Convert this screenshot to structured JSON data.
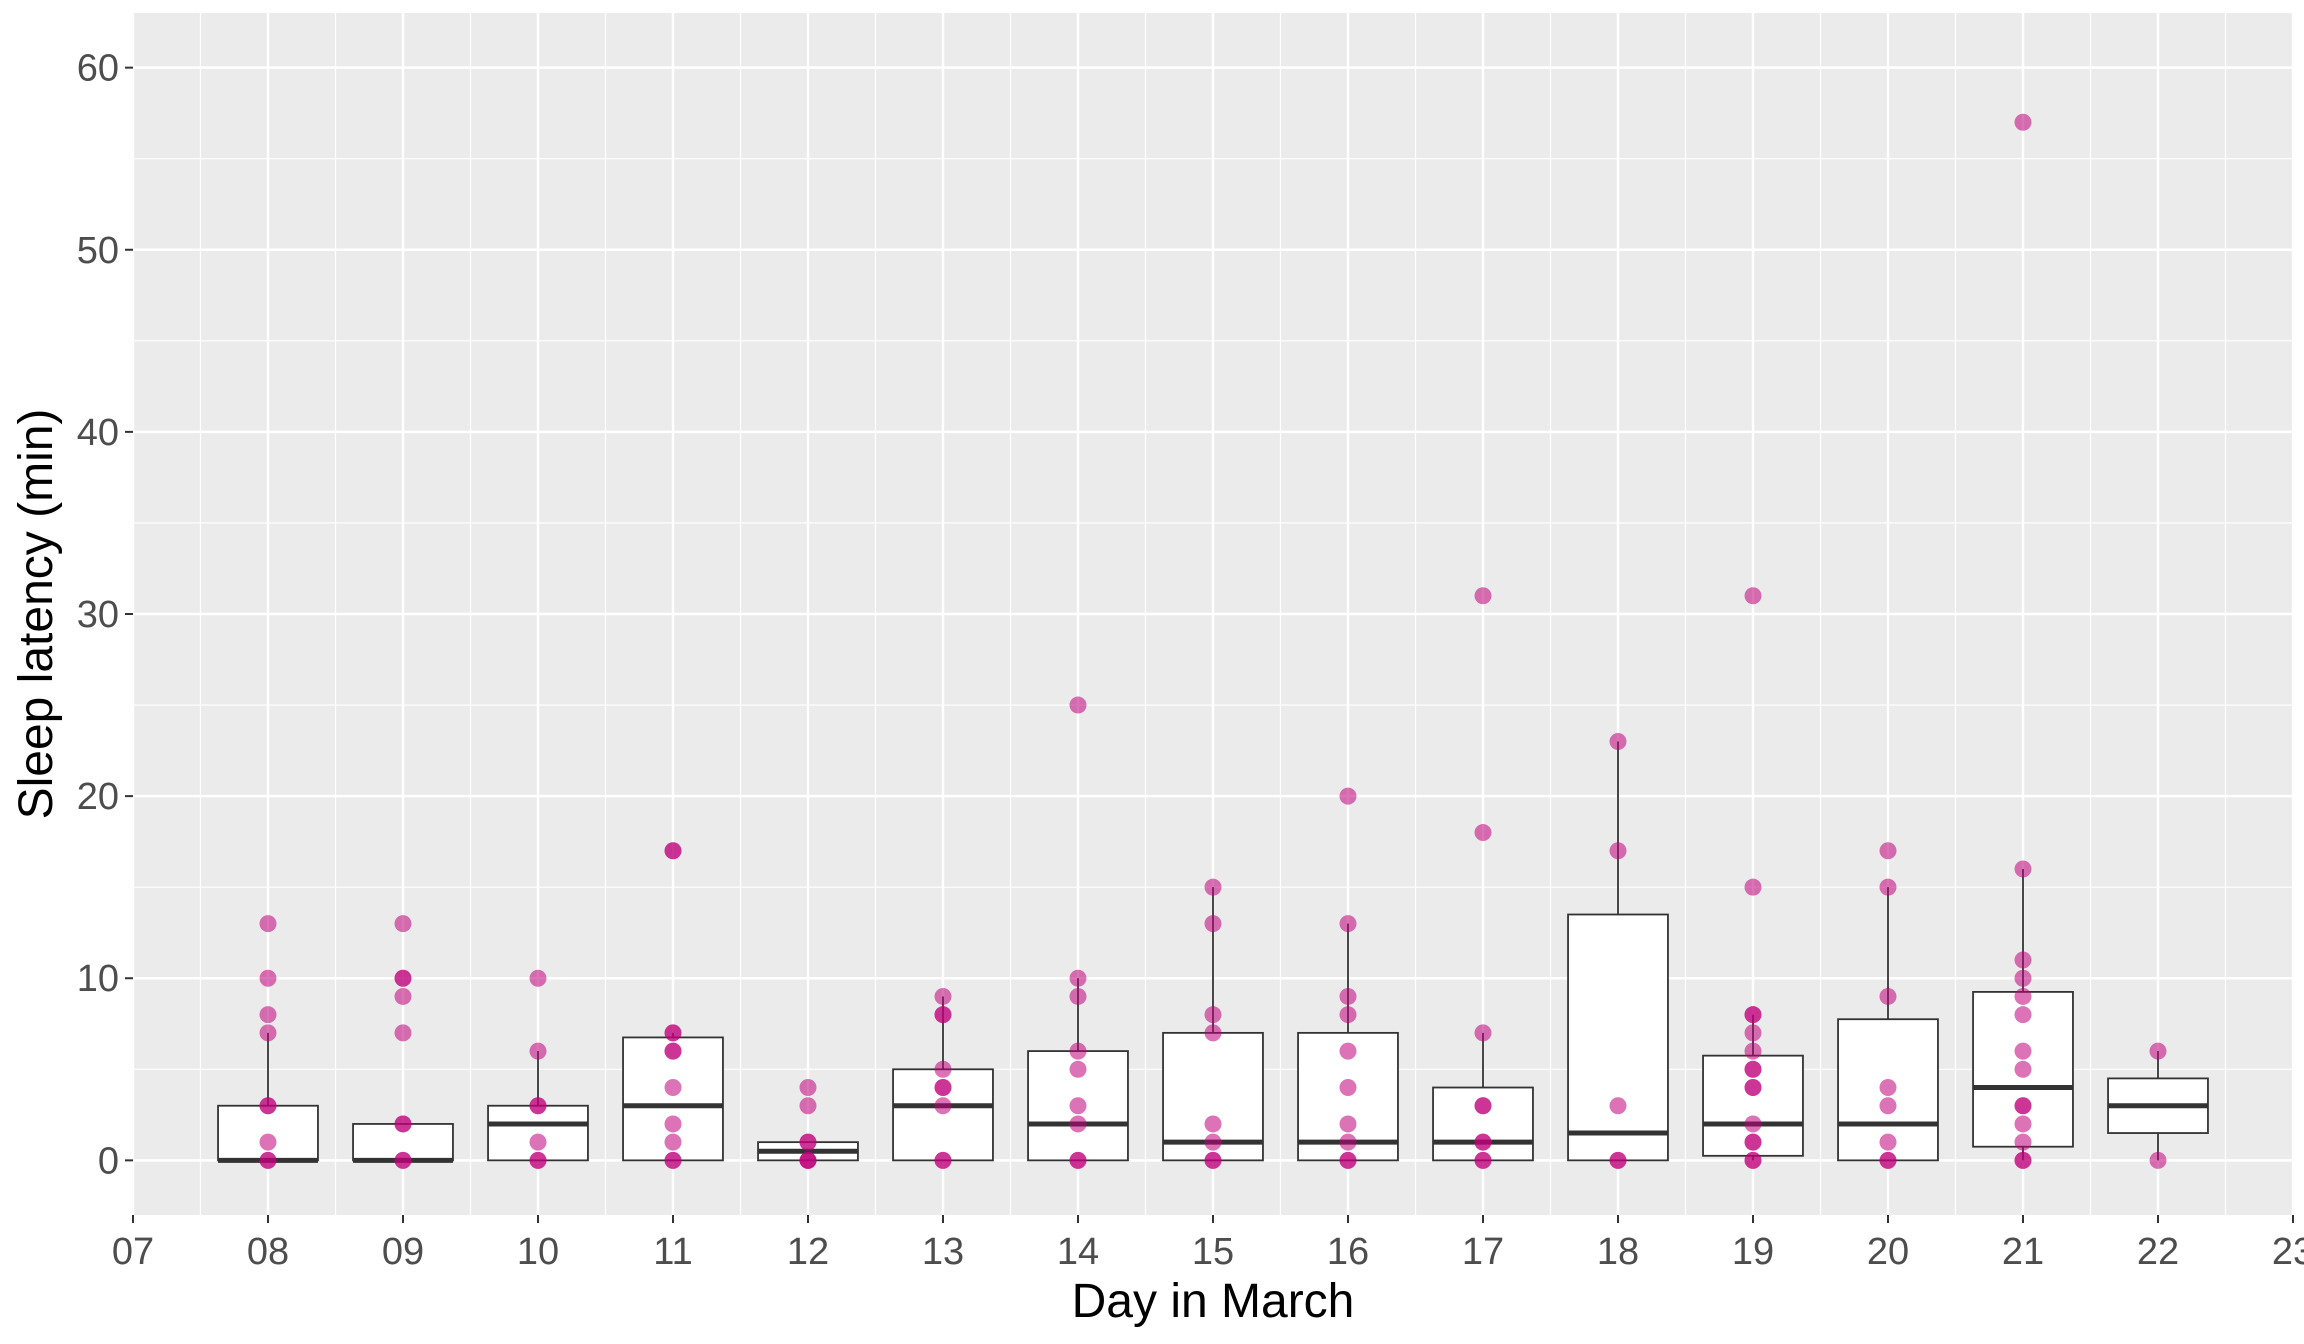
{
  "chart_data": {
    "type": "box",
    "title": "",
    "xlabel": "Day in March",
    "ylabel": "Sleep latency (min)",
    "x_ticks": [
      "07",
      "08",
      "09",
      "10",
      "11",
      "12",
      "13",
      "14",
      "15",
      "16",
      "17",
      "18",
      "19",
      "20",
      "21",
      "22",
      "23"
    ],
    "y_ticks": [
      0,
      10,
      20,
      30,
      40,
      50,
      60
    ],
    "xlim": [
      7,
      23
    ],
    "ylim": [
      -3,
      63
    ],
    "grid": true,
    "point_color": "#c0007a",
    "boxes": [
      {
        "day": 8,
        "q1": 0,
        "median": 0,
        "q3": 3,
        "whisker_low": 0,
        "whisker_high": 7,
        "points": [
          0,
          0,
          1,
          3,
          3,
          7,
          8,
          10,
          13
        ]
      },
      {
        "day": 9,
        "q1": 0,
        "median": 0,
        "q3": 2,
        "whisker_low": 0,
        "whisker_high": 2,
        "points": [
          0,
          0,
          2,
          2,
          7,
          9,
          10,
          10,
          13
        ]
      },
      {
        "day": 10,
        "q1": 0,
        "median": 2,
        "q3": 3,
        "whisker_low": 0,
        "whisker_high": 6,
        "points": [
          0,
          0,
          1,
          3,
          3,
          6,
          10
        ]
      },
      {
        "day": 11,
        "q1": 0,
        "median": 3,
        "q3": 6.75,
        "whisker_low": 0,
        "whisker_high": 7,
        "points": [
          0,
          0,
          1,
          2,
          4,
          6,
          6,
          7,
          7,
          17,
          17
        ]
      },
      {
        "day": 12,
        "q1": 0,
        "median": 0.5,
        "q3": 1,
        "whisker_low": 0,
        "whisker_high": 1,
        "points": [
          0,
          0,
          0,
          1,
          1,
          3,
          4
        ]
      },
      {
        "day": 13,
        "q1": 0,
        "median": 3,
        "q3": 5,
        "whisker_low": 0,
        "whisker_high": 9,
        "points": [
          0,
          0,
          3,
          4,
          4,
          5,
          8,
          8,
          9
        ]
      },
      {
        "day": 14,
        "q1": 0,
        "median": 2,
        "q3": 6,
        "whisker_low": 0,
        "whisker_high": 10,
        "points": [
          0,
          0,
          2,
          3,
          5,
          6,
          9,
          10,
          25
        ]
      },
      {
        "day": 15,
        "q1": 0,
        "median": 1,
        "q3": 7,
        "whisker_low": 0,
        "whisker_high": 15,
        "points": [
          0,
          0,
          1,
          2,
          7,
          8,
          13,
          15
        ]
      },
      {
        "day": 16,
        "q1": 0,
        "median": 1,
        "q3": 7,
        "whisker_low": 0,
        "whisker_high": 13,
        "points": [
          0,
          0,
          1,
          2,
          4,
          6,
          8,
          9,
          13,
          20
        ]
      },
      {
        "day": 17,
        "q1": 0,
        "median": 1,
        "q3": 4,
        "whisker_low": 0,
        "whisker_high": 7,
        "points": [
          0,
          0,
          1,
          1,
          3,
          3,
          7,
          18,
          31
        ]
      },
      {
        "day": 18,
        "q1": 0,
        "median": 1.5,
        "q3": 13.5,
        "whisker_low": 0,
        "whisker_high": 23,
        "points": [
          0,
          0,
          3,
          17,
          23
        ]
      },
      {
        "day": 19,
        "q1": 0.25,
        "median": 2,
        "q3": 5.75,
        "whisker_low": 0,
        "whisker_high": 8,
        "points": [
          0,
          0,
          1,
          1,
          2,
          4,
          4,
          5,
          5,
          6,
          7,
          8,
          8,
          15,
          31
        ]
      },
      {
        "day": 20,
        "q1": 0,
        "median": 2,
        "q3": 7.75,
        "whisker_low": 0,
        "whisker_high": 15,
        "points": [
          0,
          0,
          1,
          3,
          4,
          9,
          15,
          17
        ]
      },
      {
        "day": 21,
        "q1": 0.75,
        "median": 4,
        "q3": 9.25,
        "whisker_low": 0,
        "whisker_high": 16,
        "points": [
          0,
          0,
          1,
          2,
          3,
          3,
          5,
          6,
          8,
          9,
          10,
          11,
          16,
          57
        ]
      },
      {
        "day": 22,
        "q1": 1.5,
        "median": 3,
        "q3": 4.5,
        "whisker_low": 0,
        "whisker_high": 6,
        "points": [
          0,
          6
        ]
      }
    ]
  }
}
